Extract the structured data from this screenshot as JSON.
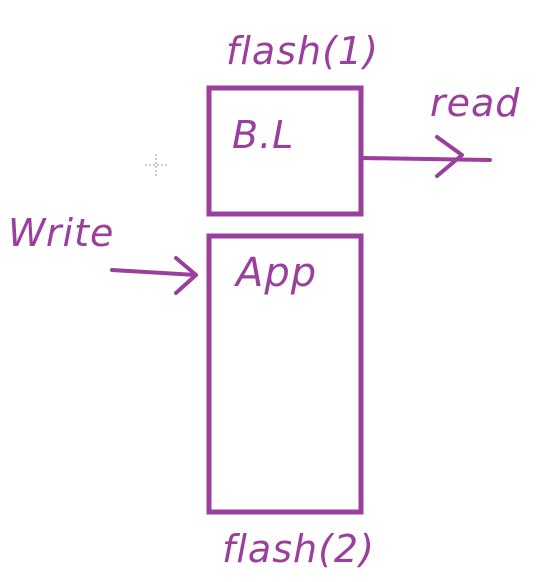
{
  "diagram": {
    "stroke_color": "#9a3f9c",
    "background": "#ffffff",
    "labels": {
      "flash_top": "flash(1)",
      "bootloader": "B.L",
      "read": "read",
      "write": "Write",
      "app": "App",
      "flash_bottom": "flash(2)"
    },
    "icons": {
      "cursor": "crosshair-cursor-icon",
      "read_arrow": "arrow-right-icon",
      "write_arrow": "arrow-right-icon"
    }
  }
}
